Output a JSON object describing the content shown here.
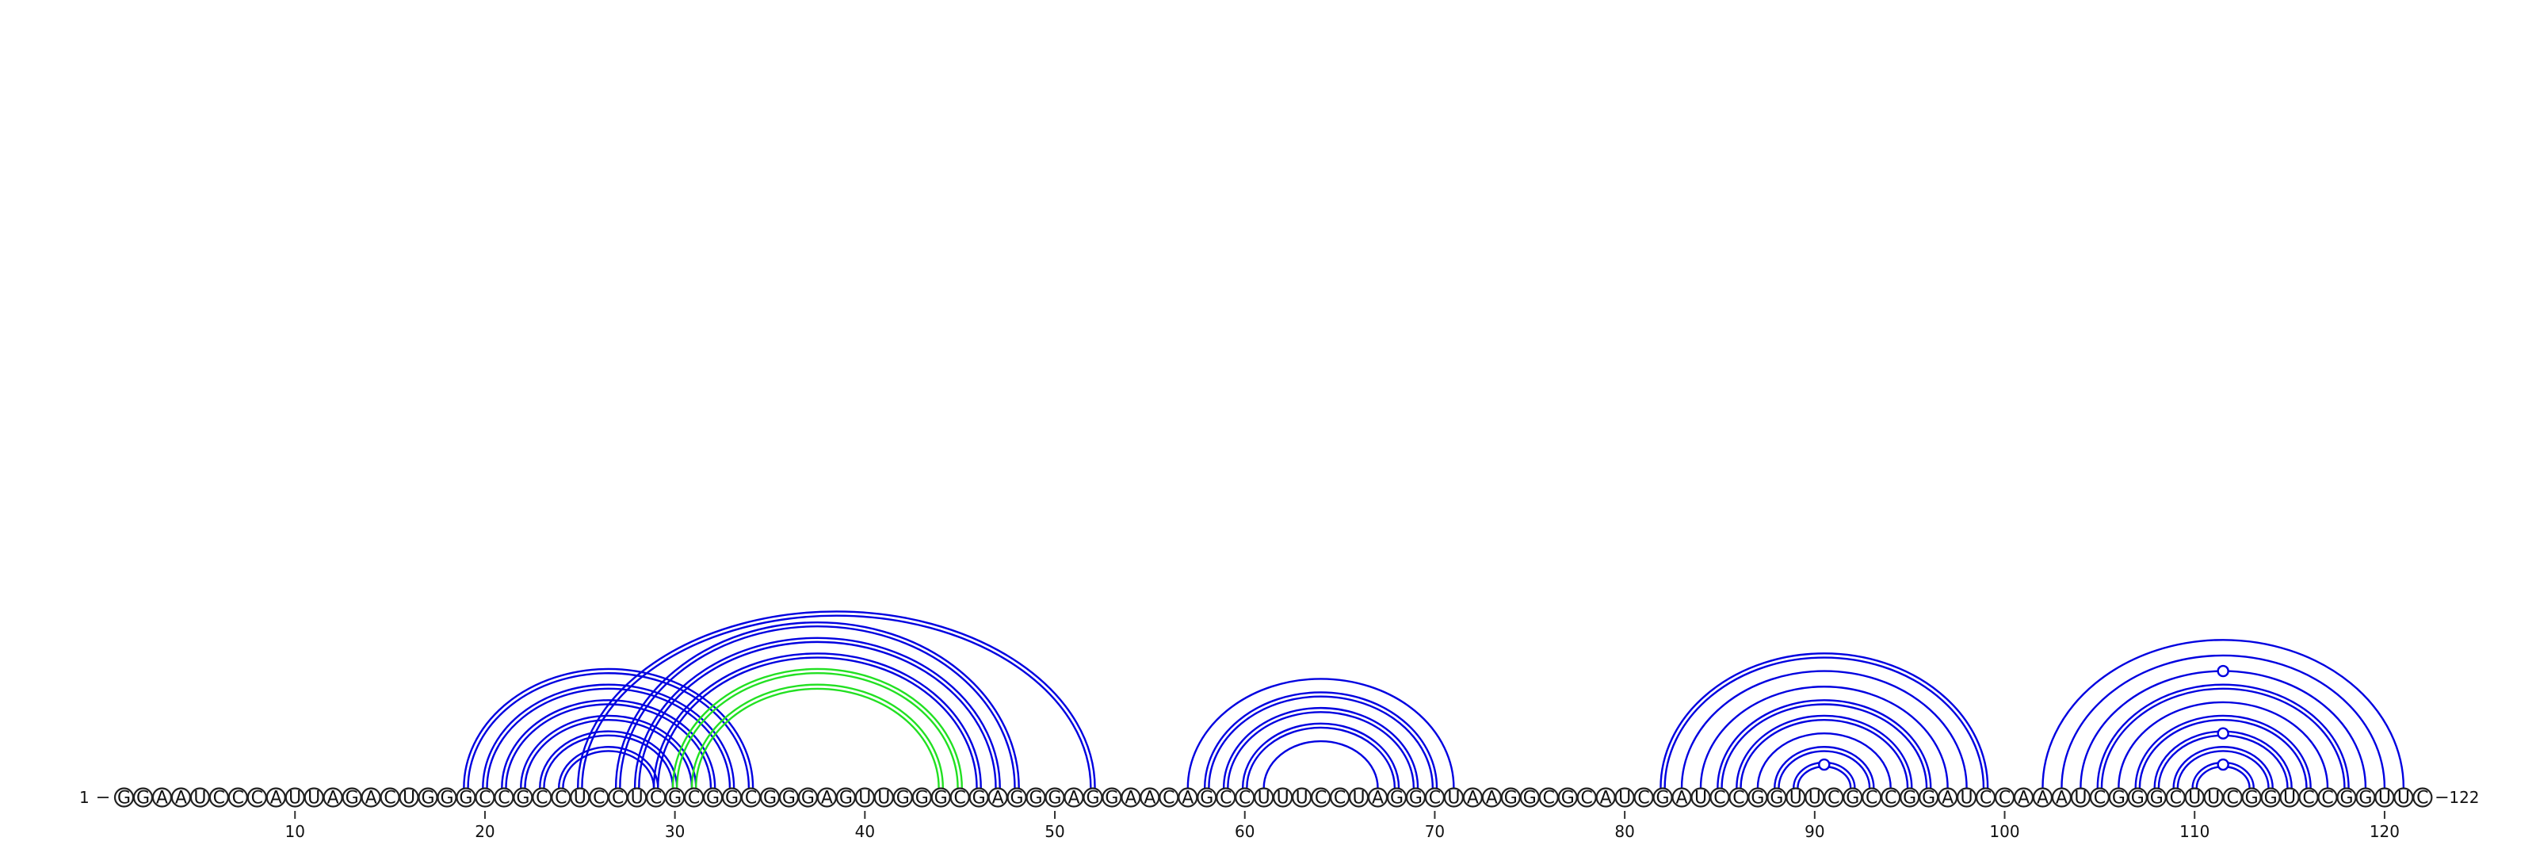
{
  "sequence": "GGAAUCCCAUUAGACUGGGCCGCCUCCUCGCGGCGGGAGUUGGGCGAGGGAGGAACAGCCUUUCCUAGGCUAAGGCGCAUCGAUCCGGUUCGCCGGAUCCAAAUCGGGCUUCGGUCCGGUUC",
  "start_label": "1",
  "end_label": "122",
  "tick_labels": [
    "10",
    "20",
    "30",
    "40",
    "50",
    "60",
    "70",
    "80",
    "90",
    "100",
    "110",
    "120"
  ],
  "tick_positions": [
    10,
    20,
    30,
    40,
    50,
    60,
    70,
    80,
    90,
    100,
    110,
    120
  ],
  "colors": {
    "blue": "#0000e0",
    "green": "#22e022"
  },
  "arcs": [
    {
      "i": 19,
      "j": 34,
      "color": "blue",
      "lines": 2
    },
    {
      "i": 20,
      "j": 33,
      "color": "blue",
      "lines": 2
    },
    {
      "i": 21,
      "j": 32,
      "color": "blue",
      "lines": 2
    },
    {
      "i": 22,
      "j": 31,
      "color": "blue",
      "lines": 2
    },
    {
      "i": 23,
      "j": 30,
      "color": "blue",
      "lines": 2
    },
    {
      "i": 24,
      "j": 29,
      "color": "blue",
      "lines": 2
    },
    {
      "i": 25,
      "j": 52,
      "color": "blue",
      "lines": 2
    },
    {
      "i": 27,
      "j": 48,
      "color": "blue",
      "lines": 2
    },
    {
      "i": 28,
      "j": 47,
      "color": "blue",
      "lines": 2
    },
    {
      "i": 29,
      "j": 46,
      "color": "blue",
      "lines": 2
    },
    {
      "i": 30,
      "j": 45,
      "color": "green",
      "lines": 2
    },
    {
      "i": 31,
      "j": 44,
      "color": "green",
      "lines": 2
    },
    {
      "i": 57,
      "j": 71,
      "color": "blue",
      "lines": 1
    },
    {
      "i": 58,
      "j": 70,
      "color": "blue",
      "lines": 2
    },
    {
      "i": 59,
      "j": 69,
      "color": "blue",
      "lines": 2
    },
    {
      "i": 60,
      "j": 68,
      "color": "blue",
      "lines": 2
    },
    {
      "i": 61,
      "j": 67,
      "color": "blue",
      "lines": 1
    },
    {
      "i": 82,
      "j": 99,
      "color": "blue",
      "lines": 2
    },
    {
      "i": 83,
      "j": 98,
      "color": "blue",
      "lines": 1
    },
    {
      "i": 84,
      "j": 97,
      "color": "blue",
      "lines": 1
    },
    {
      "i": 85,
      "j": 96,
      "color": "blue",
      "lines": 2
    },
    {
      "i": 86,
      "j": 95,
      "color": "blue",
      "lines": 2
    },
    {
      "i": 87,
      "j": 94,
      "color": "blue",
      "lines": 1
    },
    {
      "i": 88,
      "j": 93,
      "color": "blue",
      "lines": 2
    },
    {
      "i": 89,
      "j": 92,
      "color": "blue",
      "lines": 2
    },
    {
      "i": 102,
      "j": 121,
      "color": "blue",
      "lines": 1
    },
    {
      "i": 103,
      "j": 120,
      "color": "blue",
      "lines": 1
    },
    {
      "i": 104,
      "j": 119,
      "color": "blue",
      "lines": 1
    },
    {
      "i": 105,
      "j": 118,
      "color": "blue",
      "lines": 2
    },
    {
      "i": 106,
      "j": 117,
      "color": "blue",
      "lines": 1
    },
    {
      "i": 107,
      "j": 116,
      "color": "blue",
      "lines": 2
    },
    {
      "i": 108,
      "j": 115,
      "color": "blue",
      "lines": 2
    },
    {
      "i": 109,
      "j": 114,
      "color": "blue",
      "lines": 2
    },
    {
      "i": 110,
      "j": 113,
      "color": "blue",
      "lines": 2
    }
  ],
  "marker_positions": [
    {
      "at": 90.5,
      "level": 1
    },
    {
      "at": 111.5,
      "level": 1
    },
    {
      "at": 111.5,
      "level": 3
    },
    {
      "at": 111.5,
      "level": 7
    }
  ]
}
